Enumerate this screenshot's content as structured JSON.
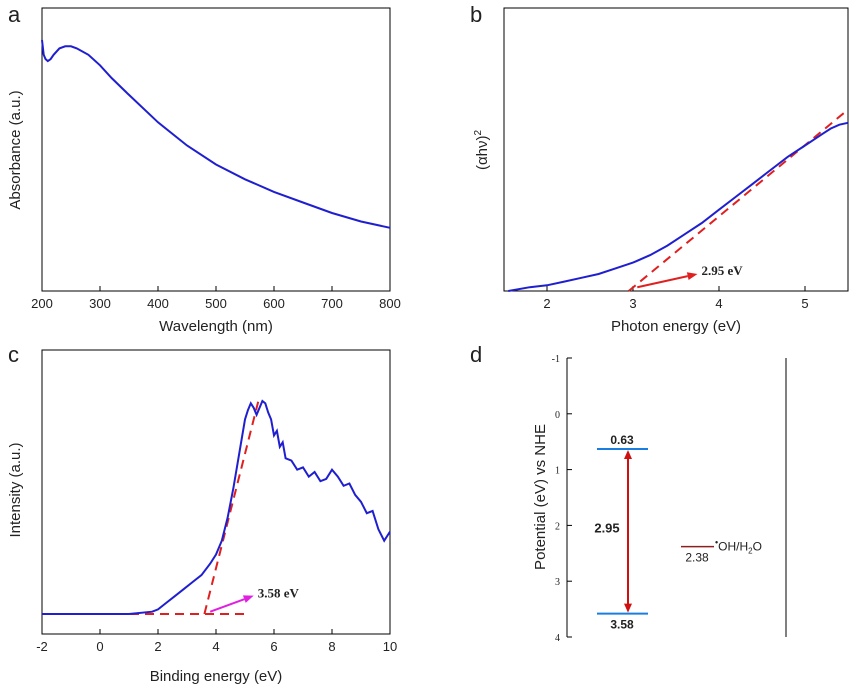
{
  "colors": {
    "curve": "#1f1fd0",
    "fit": "#e02020",
    "arrow_b": "#e02020",
    "arrow_c": "#e020e0",
    "level": "#1a7ee0",
    "gap": "#d01010",
    "redox": "#8b2020"
  },
  "chart_data": [
    {
      "panel": "a",
      "type": "line",
      "title": "",
      "xlabel": "Wavelength (nm)",
      "ylabel": "Absorbance (a.u.)",
      "xlim": [
        200,
        800
      ],
      "ylim": [
        0,
        1
      ],
      "xticks": [
        200,
        300,
        400,
        500,
        600,
        700,
        800
      ],
      "series": [
        {
          "x": [
            200,
            203,
            206,
            210,
            215,
            220,
            230,
            240,
            250,
            260,
            280,
            300,
            320,
            350,
            400,
            450,
            500,
            550,
            600,
            650,
            700,
            750,
            800
          ],
          "y": [
            1.0,
            0.93,
            0.91,
            0.9,
            0.91,
            0.93,
            0.96,
            0.97,
            0.97,
            0.96,
            0.93,
            0.88,
            0.82,
            0.74,
            0.61,
            0.5,
            0.41,
            0.34,
            0.28,
            0.23,
            0.18,
            0.14,
            0.11
          ]
        }
      ]
    },
    {
      "panel": "b",
      "type": "line",
      "title": "",
      "xlabel": "Photon energy (eV)",
      "ylabel": "(αhν)",
      "ylabel_sup": "2",
      "xlim": [
        1.5,
        5.5
      ],
      "ylim": [
        0,
        1
      ],
      "xticks": [
        2,
        3,
        4,
        5
      ],
      "series": [
        {
          "x": [
            1.55,
            1.8,
            2.0,
            2.2,
            2.4,
            2.6,
            2.8,
            3.0,
            3.2,
            3.4,
            3.6,
            3.8,
            4.0,
            4.2,
            4.4,
            4.6,
            4.8,
            5.0,
            5.1,
            5.2,
            5.3,
            5.4,
            5.5
          ],
          "y": [
            0.0,
            0.02,
            0.03,
            0.05,
            0.07,
            0.09,
            0.12,
            0.15,
            0.19,
            0.24,
            0.3,
            0.36,
            0.43,
            0.5,
            0.57,
            0.64,
            0.71,
            0.77,
            0.8,
            0.83,
            0.86,
            0.88,
            0.89
          ]
        }
      ],
      "fit_line": {
        "x": [
          2.95,
          5.5
        ],
        "y": [
          0.0,
          0.96
        ]
      },
      "annotation": {
        "text": "2.95 eV",
        "arrow_from": [
          3.05,
          0.02
        ],
        "arrow_to": [
          3.75,
          0.09
        ]
      }
    },
    {
      "panel": "c",
      "type": "line",
      "title": "",
      "xlabel": "Binding energy (eV)",
      "ylabel": "Intensity (a.u.)",
      "xlim": [
        -2,
        10
      ],
      "ylim": [
        0,
        1
      ],
      "xticks": [
        -2,
        0,
        2,
        4,
        6,
        8,
        10
      ],
      "series": [
        {
          "x": [
            -2.0,
            -1.0,
            0.0,
            1.0,
            1.8,
            2.0,
            2.3,
            2.6,
            2.9,
            3.2,
            3.5,
            3.8,
            4.0,
            4.2,
            4.4,
            4.6,
            4.8,
            5.0,
            5.1,
            5.2,
            5.3,
            5.4,
            5.5,
            5.6,
            5.7,
            5.8,
            5.9,
            6.0,
            6.1,
            6.2,
            6.3,
            6.4,
            6.6,
            6.8,
            7.0,
            7.2,
            7.4,
            7.6,
            7.8,
            8.0,
            8.2,
            8.4,
            8.6,
            8.8,
            9.0,
            9.2,
            9.4,
            9.6,
            9.8,
            10.0
          ],
          "y": [
            0.0,
            0.0,
            0.0,
            0.0,
            0.01,
            0.02,
            0.05,
            0.08,
            0.11,
            0.14,
            0.17,
            0.22,
            0.26,
            0.32,
            0.42,
            0.55,
            0.7,
            0.85,
            0.89,
            0.92,
            0.9,
            0.87,
            0.9,
            0.93,
            0.92,
            0.88,
            0.85,
            0.78,
            0.8,
            0.73,
            0.75,
            0.68,
            0.67,
            0.63,
            0.64,
            0.6,
            0.62,
            0.58,
            0.59,
            0.63,
            0.6,
            0.56,
            0.57,
            0.52,
            0.49,
            0.44,
            0.45,
            0.37,
            0.32,
            0.36
          ]
        }
      ],
      "fit_line": {
        "x": [
          3.6,
          5.5
        ],
        "y": [
          0.0,
          0.95
        ]
      },
      "baseline": {
        "x": [
          0.0,
          5.0
        ],
        "y": [
          0.0,
          0.0
        ]
      },
      "annotation": {
        "text": "3.58 eV",
        "arrow_from": [
          3.8,
          0.01
        ],
        "arrow_to": [
          5.3,
          0.08
        ]
      }
    },
    {
      "panel": "d",
      "type": "diagram",
      "title": "",
      "ylabel": "Potential (eV) vs NHE",
      "ylim": [
        -1,
        4
      ],
      "yticks": [
        -1,
        0,
        1,
        2,
        3,
        4
      ],
      "cb": {
        "value": 0.63,
        "label": "0.63"
      },
      "vb": {
        "value": 3.58,
        "label": "3.58"
      },
      "gap": {
        "label": "2.95"
      },
      "redox": {
        "value": 2.38,
        "value_label": "2.38",
        "couple_prefix": "•",
        "couple_main": "OH/H",
        "couple_sub": "2",
        "couple_end": "O"
      }
    }
  ]
}
